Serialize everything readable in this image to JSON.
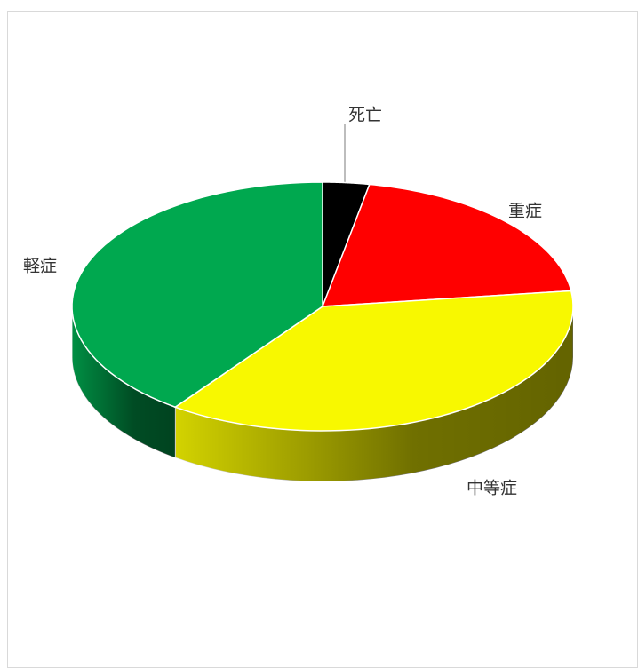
{
  "chart_data": {
    "type": "pie",
    "categories": [
      "死亡",
      "重症",
      "中等症",
      "軽症"
    ],
    "values": [
      3,
      20,
      37,
      40
    ],
    "colors": [
      "#000000",
      "#ff0000",
      "#f8f800",
      "#00a84f"
    ]
  }
}
